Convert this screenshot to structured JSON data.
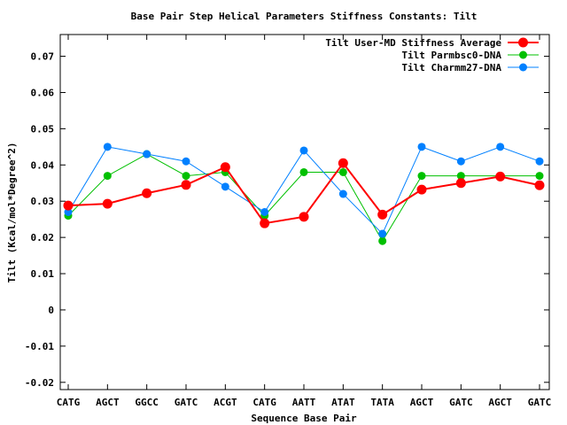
{
  "chart_data": {
    "type": "line",
    "title": "Base Pair Step Helical Parameters Stiffness Constants: Tilt",
    "xlabel": "Sequence Base Pair",
    "ylabel": "Tilt (Kcal/mol*Degree^2)",
    "categories": [
      "CATG",
      "AGCT",
      "GGCC",
      "GATC",
      "ACGT",
      "CATG",
      "AATT",
      "ATAT",
      "TATA",
      "AGCT",
      "GATC",
      "AGCT",
      "GATC"
    ],
    "ylim": [
      -0.022,
      0.076
    ],
    "yticks": [
      -0.02,
      -0.01,
      0,
      0.01,
      0.02,
      0.03,
      0.04,
      0.05,
      0.06,
      0.07
    ],
    "ytick_labels": [
      "-0.02",
      "-0.01",
      "0",
      "0.01",
      "0.02",
      "0.03",
      "0.04",
      "0.05",
      "0.06",
      "0.07"
    ],
    "grid": false,
    "legend_position": "top-right",
    "series": [
      {
        "name": "Tilt User-MD Stiffness Average",
        "color": "#ff0000",
        "values": [
          0.0288,
          0.0293,
          0.0322,
          0.0345,
          0.0394,
          0.0239,
          0.0257,
          0.0405,
          0.0263,
          0.0332,
          0.035,
          0.0368,
          0.0344
        ]
      },
      {
        "name": "Tilt Parmbsc0-DNA",
        "color": "#00c000",
        "values": [
          0.026,
          0.037,
          0.043,
          0.037,
          0.038,
          0.026,
          0.038,
          0.038,
          0.019,
          0.037,
          0.037,
          0.037,
          0.037
        ]
      },
      {
        "name": "Tilt Charmm27-DNA",
        "color": "#0080ff",
        "values": [
          0.027,
          0.045,
          0.043,
          0.041,
          0.034,
          0.027,
          0.044,
          0.032,
          0.021,
          0.045,
          0.041,
          0.045,
          0.041
        ]
      }
    ]
  }
}
